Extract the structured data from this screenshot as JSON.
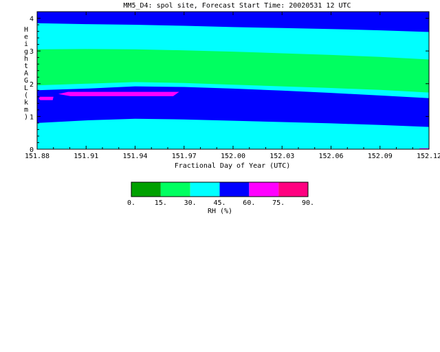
{
  "chart_data": {
    "type": "heatmap",
    "title": "MM5_D4: spol site,  Forecast Start Time: 20020531 12 UTC",
    "xlabel": "Fractional Day of Year (UTC)",
    "ylabel": "Height AGL (km)",
    "xlim": [
      151.88,
      152.12
    ],
    "ylim": [
      0,
      4.2
    ],
    "x_ticks": [
      151.88,
      151.91,
      151.94,
      151.97,
      152.0,
      152.03,
      152.06,
      152.09,
      152.12
    ],
    "x_tick_labels": [
      "151.88",
      "151.91",
      "151.94",
      "151.97",
      "152.00",
      "152.03",
      "152.06",
      "152.09",
      "152.12"
    ],
    "y_ticks": [
      0,
      1,
      2,
      3,
      4
    ],
    "y_tick_labels": [
      "0",
      "1",
      "2",
      "3",
      "4"
    ],
    "x_samples": [
      151.88,
      151.91,
      151.94,
      151.97,
      152.0,
      152.03,
      152.06,
      152.09,
      152.12
    ],
    "contour_boundaries_km": [
      {
        "between": "45-60 / 30-45",
        "heights": [
          0.8,
          0.88,
          0.93,
          0.91,
          0.87,
          0.83,
          0.79,
          0.74,
          0.68
        ]
      },
      {
        "between": "30-45 / 45-60",
        "heights": [
          1.8,
          1.85,
          1.92,
          1.9,
          1.85,
          1.79,
          1.72,
          1.64,
          1.56
        ]
      },
      {
        "between": "15-30 / 30-45",
        "heights": [
          1.95,
          2.0,
          2.05,
          2.02,
          1.97,
          1.92,
          1.87,
          1.81,
          1.73
        ]
      },
      {
        "between": "30-45 / 15-30",
        "heights": [
          3.05,
          3.06,
          3.05,
          3.02,
          2.98,
          2.93,
          2.88,
          2.82,
          2.74
        ]
      },
      {
        "between": "45-60 / 30-45 (upper)",
        "heights": [
          3.85,
          3.82,
          3.8,
          3.77,
          3.73,
          3.7,
          3.67,
          3.63,
          3.58
        ]
      }
    ],
    "high_rh_patches": [
      {
        "range": "60-75",
        "x": [
          151.881,
          151.89
        ],
        "y": [
          1.5,
          1.6
        ]
      },
      {
        "range": "60-75",
        "x": [
          151.893,
          151.967
        ],
        "y": [
          1.62,
          1.75
        ]
      },
      {
        "range": "60-75",
        "x": [
          152.114,
          152.12
        ],
        "y": [
          0,
          0.03
        ]
      }
    ],
    "colorbar": {
      "label": "RH (%)",
      "tick_labels": [
        "0.",
        "15.",
        "30.",
        "45.",
        "60.",
        "75.",
        "90."
      ],
      "colors": [
        "#00a000",
        "#00ff60",
        "#00ffff",
        "#0000ff",
        "#ff00ff",
        "#ff0080"
      ]
    }
  }
}
